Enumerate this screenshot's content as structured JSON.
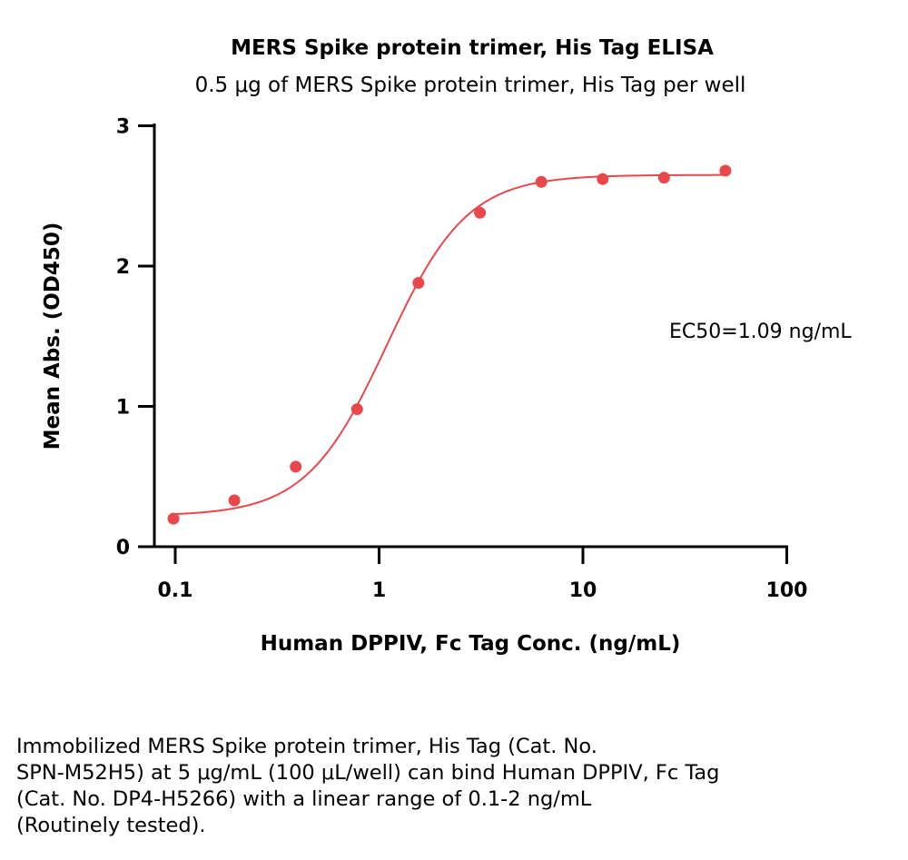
{
  "chart_data": {
    "type": "scatter",
    "title": "MERS Spike protein trimer, His Tag ELISA",
    "subtitle": "0.5 μg of MERS Spike protein trimer, His Tag per well",
    "xlabel": "Human DPPIV, Fc Tag Conc. (ng/mL)",
    "ylabel": "Mean Abs. (OD450)",
    "x_scale": "log",
    "xlim": [
      0.1,
      100
    ],
    "ylim": [
      0,
      3
    ],
    "x_ticks": [
      {
        "value": 0.1,
        "label": "0.1"
      },
      {
        "value": 1,
        "label": "1"
      },
      {
        "value": 10,
        "label": "10"
      },
      {
        "value": 100,
        "label": "100"
      }
    ],
    "y_ticks": [
      {
        "value": 0,
        "label": "0"
      },
      {
        "value": 1,
        "label": "1"
      },
      {
        "value": 2,
        "label": "2"
      },
      {
        "value": 3,
        "label": "3"
      }
    ],
    "grid": false,
    "color": "#e8484b",
    "points": [
      {
        "x": 0.098,
        "y": 0.2
      },
      {
        "x": 0.195,
        "y": 0.33
      },
      {
        "x": 0.39,
        "y": 0.57
      },
      {
        "x": 0.78,
        "y": 0.98
      },
      {
        "x": 1.56,
        "y": 1.88
      },
      {
        "x": 3.125,
        "y": 2.38
      },
      {
        "x": 6.25,
        "y": 2.6
      },
      {
        "x": 12.5,
        "y": 2.62
      },
      {
        "x": 25,
        "y": 2.63
      },
      {
        "x": 50,
        "y": 2.68
      }
    ],
    "fit": {
      "bottom": 0.22,
      "top": 2.65,
      "ec50": 1.09,
      "hill": 2.2,
      "x_range": [
        0.098,
        50
      ]
    },
    "annotation": "EC50=1.09 ng/mL"
  },
  "caption": [
    "Immobilized MERS Spike protein trimer, His Tag (Cat. No.",
    "SPN-M52H5) at 5 μg/mL (100 μL/well) can bind Human DPPIV, Fc Tag",
    "(Cat. No. DP4-H5266) with a linear range of 0.1-2 ng/mL",
    "(Routinely tested)."
  ]
}
